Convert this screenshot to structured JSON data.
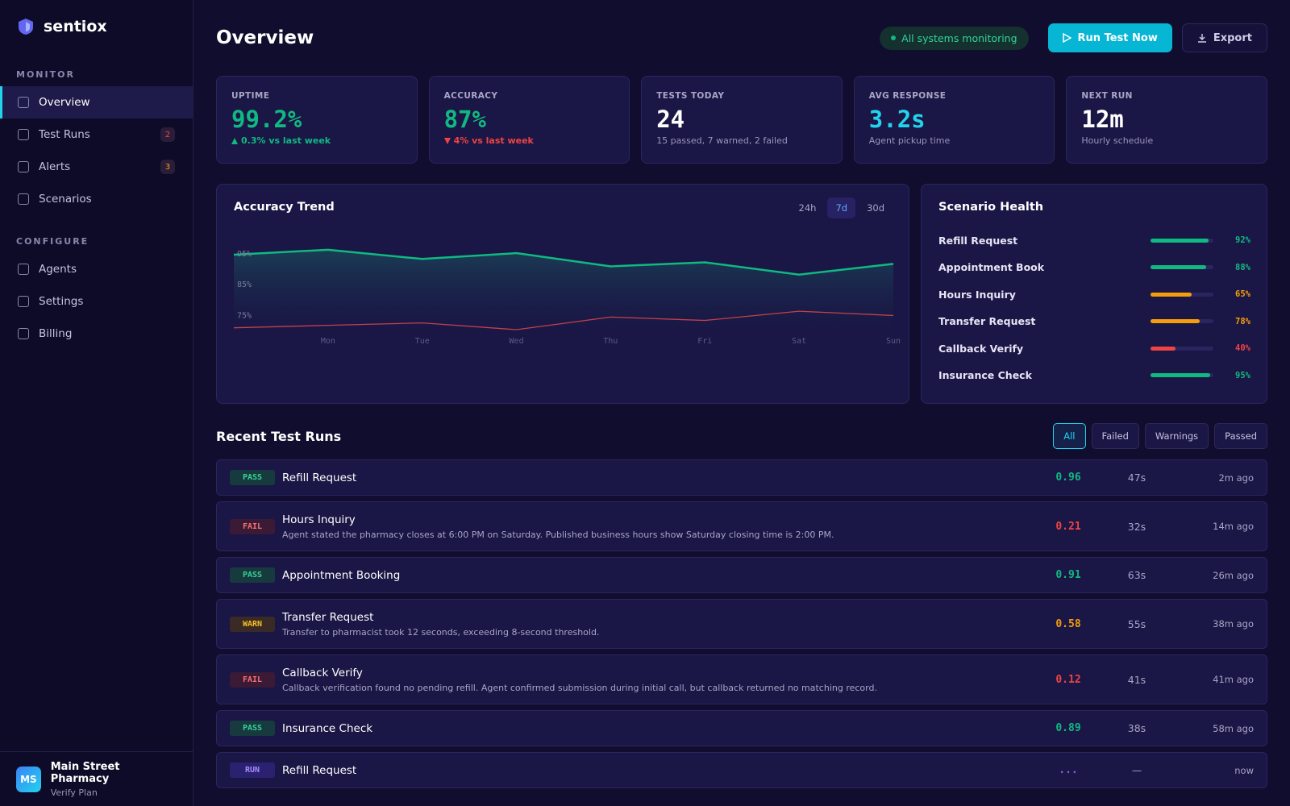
{
  "brand": "sentiox",
  "sidebar": {
    "sections": [
      {
        "label": "MONITOR",
        "items": [
          {
            "label": "Overview",
            "active": true
          },
          {
            "label": "Test Runs",
            "badge": "2",
            "badge_color": "#ef4444"
          },
          {
            "label": "Alerts",
            "badge": "3",
            "badge_color": "#f59e0b"
          },
          {
            "label": "Scenarios"
          }
        ]
      },
      {
        "label": "CONFIGURE",
        "items": [
          {
            "label": "Agents"
          },
          {
            "label": "Settings"
          },
          {
            "label": "Billing"
          }
        ]
      }
    ]
  },
  "account": {
    "initials": "MS",
    "name": "Main Street Pharmacy",
    "plan": "Verify Plan"
  },
  "header": {
    "title": "Overview",
    "status": "All systems monitoring",
    "run_button": "Run Test Now",
    "export_button": "Export"
  },
  "kpis": [
    {
      "label": "UPTIME",
      "value": "99.2%",
      "note": "0.3% vs last week",
      "trend": "up",
      "color": "#10b981"
    },
    {
      "label": "ACCURACY",
      "value": "87%",
      "note": "4% vs last week",
      "trend": "down",
      "color": "#10b981"
    },
    {
      "label": "TESTS TODAY",
      "value": "24",
      "note": "15 passed, 7 warned, 2 failed",
      "color": "#ffffff"
    },
    {
      "label": "AVG RESPONSE",
      "value": "3.2s",
      "note": "Agent pickup time",
      "color": "#22d3ee"
    },
    {
      "label": "NEXT RUN",
      "value": "12m",
      "note": "Hourly schedule",
      "color": "#ffffff"
    }
  ],
  "chart_data": {
    "type": "line",
    "title": "Accuracy Trend",
    "ranges": [
      "24h",
      "7d",
      "30d"
    ],
    "active_range": 1,
    "categories": [
      null,
      "Mon",
      "Tue",
      "Wed",
      "Thu",
      "Fri",
      "Sat",
      "Sun"
    ],
    "series": [
      {
        "color": "#10b981",
        "values": [
          94.5,
          96.1,
          93.1,
          95,
          90.7,
          92,
          88,
          91.5
        ],
        "area": true
      },
      {
        "color": "#c2414b",
        "values": [
          70.7,
          71.5,
          72.3,
          70.1,
          74.2,
          73.1,
          76.1,
          74.7
        ]
      }
    ],
    "ylim": [
      68,
      100
    ],
    "yticks": [
      {
        "value": 75,
        "label": "75%"
      },
      {
        "value": 85,
        "label": "85%"
      },
      {
        "value": 95,
        "label": "95%"
      }
    ],
    "grid": false
  },
  "scenario_health": {
    "title": "Scenario Health",
    "categories": [
      "Refill Request",
      "Appointment Book",
      "Hours Inquiry",
      "Transfer Request",
      "Callback Verify",
      "Insurance Check"
    ],
    "values": [
      92,
      88,
      65,
      78,
      40,
      95
    ],
    "value_labels": [
      "92%",
      "88%",
      "65%",
      "78%",
      "40%",
      "95%"
    ],
    "colors": [
      "#10b981",
      "#10b981",
      "#f59e0b",
      "#f59e0b",
      "#ef4444",
      "#10b981"
    ]
  },
  "recent_runs": {
    "title": "Recent Test Runs",
    "filters": [
      "All",
      "Failed",
      "Warnings",
      "Passed"
    ],
    "active_filter": 0,
    "rows": [
      {
        "status": "PASS",
        "name": "Refill Request",
        "score": "0.96",
        "duration": "47s",
        "time": "2m ago"
      },
      {
        "status": "FAIL",
        "name": "Hours Inquiry",
        "detail": "Agent stated the pharmacy closes at 6:00 PM on Saturday. Published business hours show Saturday closing time is 2:00 PM.",
        "score": "0.21",
        "duration": "32s",
        "time": "14m ago"
      },
      {
        "status": "PASS",
        "name": "Appointment Booking",
        "score": "0.91",
        "duration": "63s",
        "time": "26m ago"
      },
      {
        "status": "WARN",
        "name": "Transfer Request",
        "detail": "Transfer to pharmacist took 12 seconds, exceeding 8-second threshold.",
        "score": "0.58",
        "duration": "55s",
        "time": "38m ago"
      },
      {
        "status": "FAIL",
        "name": "Callback Verify",
        "detail": "Callback verification found no pending refill. Agent confirmed submission during initial call, but callback returned no matching record.",
        "score": "0.12",
        "duration": "41s",
        "time": "41m ago"
      },
      {
        "status": "PASS",
        "name": "Insurance Check",
        "score": "0.89",
        "duration": "38s",
        "time": "58m ago"
      },
      {
        "status": "RUN",
        "name": "Refill Request",
        "score": "...",
        "duration": "—",
        "time": "now"
      }
    ]
  }
}
